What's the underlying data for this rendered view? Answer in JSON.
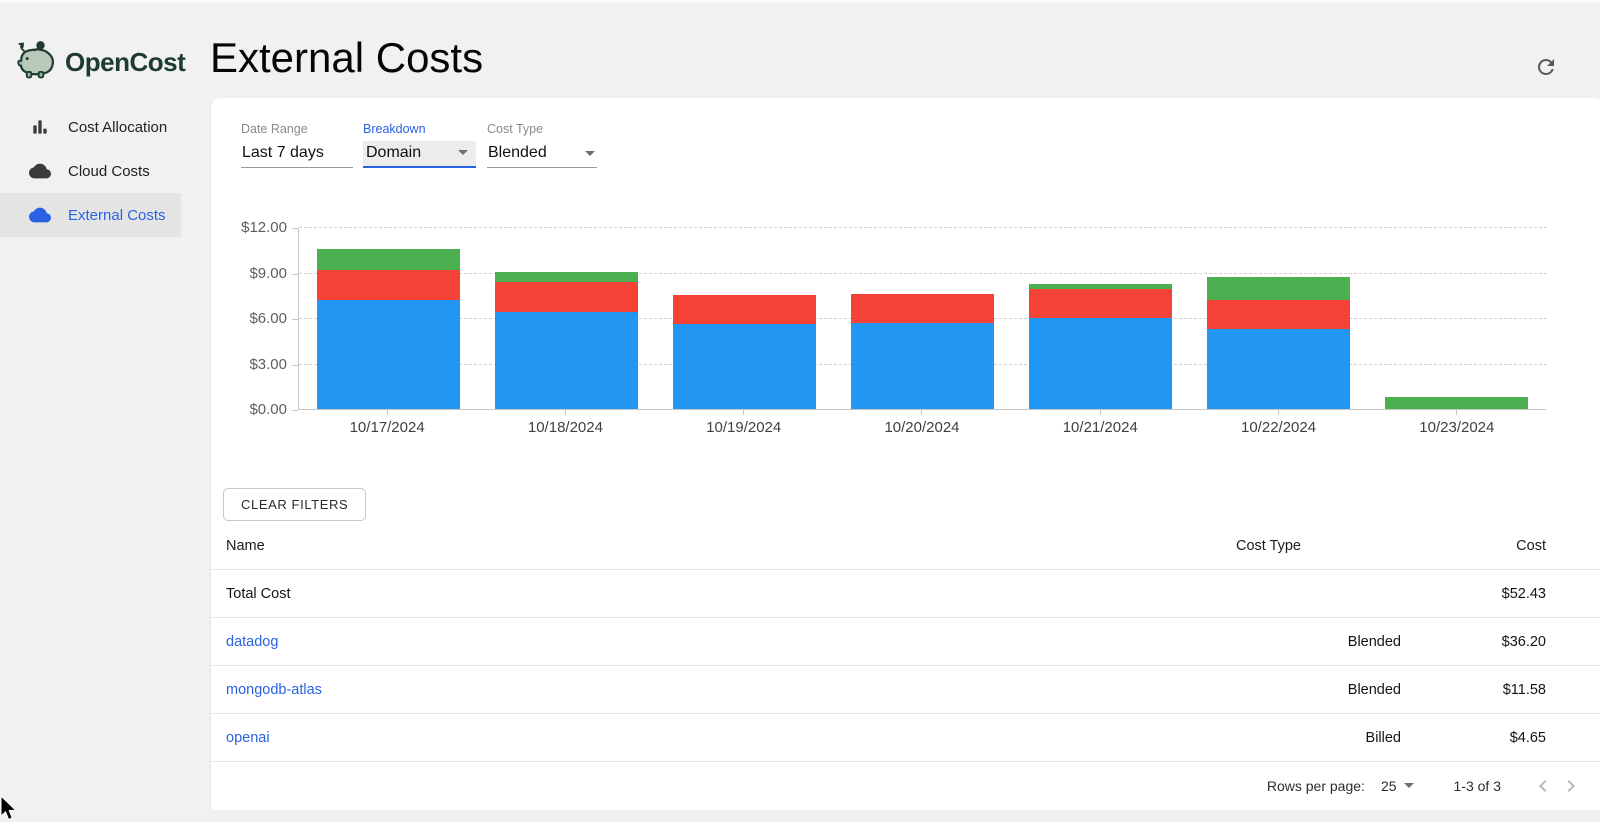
{
  "app": {
    "logo_text": "OpenCost"
  },
  "sidebar": {
    "items": [
      {
        "label": "Cost Allocation",
        "icon": "bar-chart-icon",
        "active": false
      },
      {
        "label": "Cloud Costs",
        "icon": "cloud-icon",
        "active": false
      },
      {
        "label": "External Costs",
        "icon": "cloud-icon",
        "active": true
      }
    ]
  },
  "header": {
    "title": "External Costs"
  },
  "filters": [
    {
      "label": "Date Range",
      "value": "Last 7 days",
      "focused": false
    },
    {
      "label": "Breakdown",
      "value": "Domain",
      "focused": true
    },
    {
      "label": "Cost Type",
      "value": "Blended",
      "focused": false
    }
  ],
  "chart_data": {
    "type": "bar",
    "stacked": true,
    "categories": [
      "10/17/2024",
      "10/18/2024",
      "10/19/2024",
      "10/20/2024",
      "10/21/2024",
      "10/22/2024",
      "10/23/2024"
    ],
    "series": [
      {
        "name": "datadog",
        "color": "#2196f3",
        "values": [
          7.2,
          6.4,
          5.6,
          5.7,
          6.0,
          5.3,
          0
        ]
      },
      {
        "name": "mongodb-atlas",
        "color": "#f44336",
        "values": [
          1.95,
          2.0,
          1.93,
          1.9,
          1.9,
          1.9,
          0
        ]
      },
      {
        "name": "openai",
        "color": "#4caf50",
        "values": [
          1.4,
          0.62,
          0,
          0,
          0.33,
          1.5,
          0.8
        ]
      }
    ],
    "title": "",
    "xlabel": "",
    "ylabel": "",
    "ylim": [
      0,
      12
    ],
    "yticks": [
      0,
      3,
      6,
      9,
      12
    ],
    "ytick_format": "$0.00",
    "grid": "horizontal-dashed",
    "legend": "none"
  },
  "actions": {
    "clear_filters": "CLEAR FILTERS"
  },
  "table": {
    "columns": [
      "Name",
      "Cost Type",
      "Cost"
    ],
    "rows": [
      {
        "name": "Total Cost",
        "cost_type": "",
        "cost": "$52.43",
        "link": false
      },
      {
        "name": "datadog",
        "cost_type": "Blended",
        "cost": "$36.20",
        "link": true
      },
      {
        "name": "mongodb-atlas",
        "cost_type": "Blended",
        "cost": "$11.58",
        "link": true
      },
      {
        "name": "openai",
        "cost_type": "Billed",
        "cost": "$4.65",
        "link": true
      }
    ]
  },
  "pagination": {
    "rows_per_page_label": "Rows per page:",
    "rows_per_page": "25",
    "range": "1-3 of 3"
  },
  "colors": {
    "accent_blue": "#2a62e4",
    "bar_blue": "#2196f3",
    "bar_red": "#f44336",
    "bar_green": "#4caf50",
    "logo_green": "#1d3c2e",
    "background": "#f1f1f2",
    "panel": "#ffffff"
  }
}
